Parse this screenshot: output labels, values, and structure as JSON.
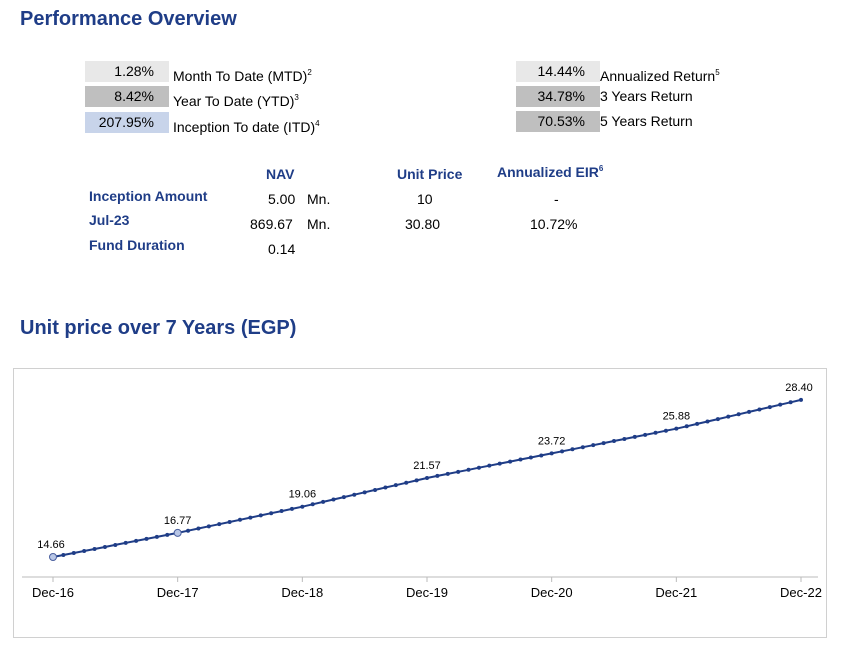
{
  "performance": {
    "title": "Performance Overview",
    "left_metrics": [
      {
        "value": "1.28%",
        "label": "Month To Date (MTD)",
        "note": "2",
        "bg": "#e8e8e8"
      },
      {
        "value": "8.42%",
        "label": "Year To Date (YTD)",
        "note": "3",
        "bg": "#bfbfbf"
      },
      {
        "value": "207.95%",
        "label": "Inception To date (ITD)",
        "note": "4",
        "bg": "#c8d4ea"
      }
    ],
    "right_metrics": [
      {
        "value": "14.44%",
        "label": "Annualized Return",
        "note": "5",
        "bg": "#e8e8e8"
      },
      {
        "value": "34.78%",
        "label": "3 Years Return",
        "note": "",
        "bg": "#bfbfbf"
      },
      {
        "value": "70.53%",
        "label": "5 Years Return",
        "note": "",
        "bg": "#bfbfbf"
      }
    ]
  },
  "nav_table": {
    "headers": {
      "nav": "NAV",
      "unit_price": "Unit Price",
      "eir": "Annualized EIR",
      "eir_note": "6"
    },
    "rows": [
      {
        "label": "Inception Amount",
        "nav": "5.00",
        "unit": "Mn.",
        "unit_price": "10",
        "eir": "-"
      },
      {
        "label": "Jul-23",
        "nav": "869.67",
        "unit": "Mn.",
        "unit_price": "30.80",
        "eir": "10.72%"
      },
      {
        "label": "Fund Duration",
        "nav": "0.14",
        "unit": "",
        "unit_price": "",
        "eir": ""
      }
    ]
  },
  "chart_title": "Unit price over 7 Years (EGP)",
  "chart_data": {
    "type": "line",
    "title": "Unit price over 7 Years (EGP)",
    "xlabel": "",
    "ylabel": "",
    "x_ticks": [
      "Dec-16",
      "Dec-17",
      "Dec-18",
      "Dec-19",
      "Dec-20",
      "Dec-21",
      "Dec-22"
    ],
    "labeled_points": [
      {
        "x": "Dec-16",
        "y": 14.66
      },
      {
        "x": "Dec-17",
        "y": 16.77
      },
      {
        "x": "Dec-18",
        "y": 19.06
      },
      {
        "x": "Dec-19",
        "y": 21.57
      },
      {
        "x": "Dec-20",
        "y": 23.72
      },
      {
        "x": "Dec-21",
        "y": 25.88
      },
      {
        "x": "Dec-22",
        "y": 28.4
      }
    ],
    "monthly_points_between_labels": 11,
    "line_color": "#1f3d87",
    "highlight_fill": "#b8c6e6",
    "grid": false,
    "legend": "none"
  }
}
